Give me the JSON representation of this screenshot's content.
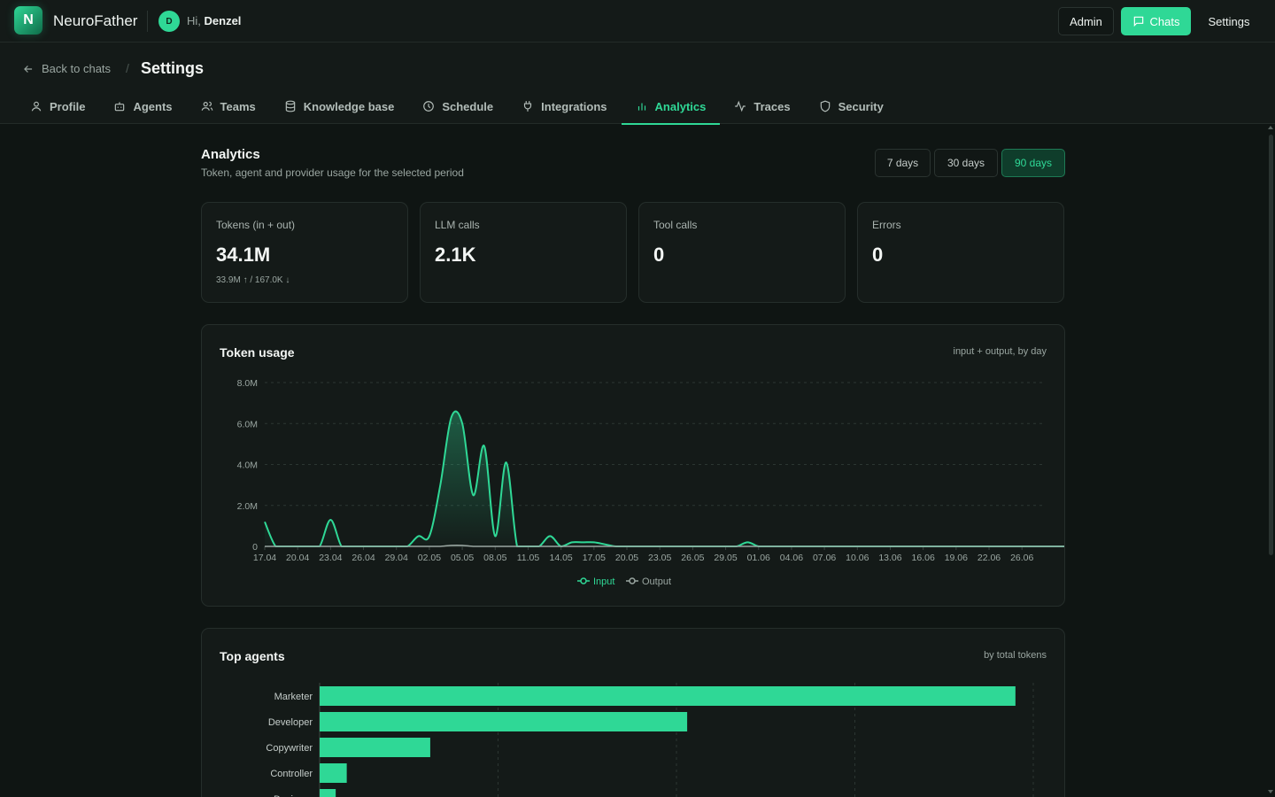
{
  "app": {
    "logo_letter": "N",
    "name": "NeuroFather",
    "user_initial": "D",
    "greeting": "Hi,",
    "user_name": "Denzel"
  },
  "topnav": {
    "admin": "Admin",
    "chats": "Chats",
    "settings": "Settings"
  },
  "header": {
    "back": "Back to chats",
    "separator": "/",
    "title": "Settings"
  },
  "tabs": [
    {
      "label": "Profile",
      "icon": "user-icon"
    },
    {
      "label": "Agents",
      "icon": "bot-icon"
    },
    {
      "label": "Teams",
      "icon": "users-icon"
    },
    {
      "label": "Knowledge base",
      "icon": "database-icon"
    },
    {
      "label": "Schedule",
      "icon": "clock-icon"
    },
    {
      "label": "Integrations",
      "icon": "plug-icon"
    },
    {
      "label": "Analytics",
      "icon": "bar-chart-icon",
      "active": true
    },
    {
      "label": "Traces",
      "icon": "activity-icon"
    },
    {
      "label": "Security",
      "icon": "shield-icon"
    }
  ],
  "analytics": {
    "title": "Analytics",
    "subtitle": "Token, agent and provider usage for the selected period",
    "periods": [
      "7 days",
      "30 days",
      "90 days"
    ],
    "selected_period": "90 days"
  },
  "stats": [
    {
      "label": "Tokens (in + out)",
      "value": "34.1M",
      "sub": "33.9M ↑ / 167.0K ↓"
    },
    {
      "label": "LLM calls",
      "value": "2.1K"
    },
    {
      "label": "Tool calls",
      "value": "0"
    },
    {
      "label": "Errors",
      "value": "0"
    }
  ],
  "token_card": {
    "title": "Token usage",
    "note": "input + output, by day"
  },
  "agents_card": {
    "title": "Top agents",
    "note": "by total tokens"
  },
  "colors": {
    "accent": "#2fd896",
    "muted": "#9aa6a1",
    "grid": "#2c3632"
  },
  "chart_data": [
    {
      "type": "area",
      "x_tick_labels": [
        "17.04",
        "20.04",
        "23.04",
        "26.04",
        "29.04",
        "02.05",
        "05.05",
        "08.05",
        "11.05",
        "14.05",
        "17.05",
        "20.05",
        "23.05",
        "26.05",
        "29.05",
        "01.06",
        "04.06",
        "07.06",
        "10.06",
        "13.06",
        "16.06",
        "19.06",
        "22.06",
        "26.06"
      ],
      "y_tick_labels": [
        "0",
        "2.0M",
        "4.0M",
        "6.0M",
        "8.0M"
      ],
      "ylim": [
        0,
        8000000
      ],
      "x_start": "17.04",
      "points_per_tick": 3,
      "series": [
        {
          "name": "Input",
          "color": "#2fd896",
          "values": [
            1200000,
            0,
            0,
            0,
            0,
            0,
            1300000,
            0,
            0,
            0,
            0,
            0,
            0,
            0,
            500000,
            500000,
            3000000,
            6300000,
            6000000,
            2500000,
            4900000,
            500000,
            4100000,
            0,
            0,
            0,
            500000,
            0,
            200000,
            200000,
            200000,
            100000,
            0,
            0,
            0,
            0,
            0,
            0,
            0,
            0,
            0,
            0,
            0,
            0,
            200000,
            0,
            0,
            0,
            0,
            0,
            0,
            0,
            0,
            0,
            0,
            0,
            0,
            0,
            0,
            0,
            0,
            0,
            0,
            0,
            0,
            0,
            0,
            0,
            0,
            0,
            0,
            0,
            0,
            0,
            0,
            0,
            0,
            0,
            0,
            0,
            0,
            0,
            0,
            0,
            0,
            0,
            0,
            0,
            0,
            0,
            0,
            0,
            0,
            0,
            0,
            0,
            0,
            0,
            0,
            0,
            0,
            0,
            0,
            0,
            0,
            0,
            0,
            0,
            0,
            0
          ]
        },
        {
          "name": "Output",
          "color": "#9aa6a1",
          "values": [
            0,
            0,
            0,
            0,
            0,
            0,
            0,
            0,
            0,
            0,
            0,
            0,
            0,
            0,
            0,
            0,
            0,
            50000,
            50000,
            0,
            0,
            0,
            0,
            0,
            0,
            0,
            0,
            0,
            0,
            0,
            0,
            0,
            0,
            0,
            0,
            0,
            0,
            0,
            0,
            0,
            0,
            0,
            0,
            0,
            0,
            0,
            0,
            0,
            0,
            0,
            0,
            0,
            0,
            0,
            0,
            0,
            0,
            0,
            0,
            0,
            0,
            0,
            0,
            0,
            0,
            0,
            0,
            0,
            0,
            0,
            0,
            0,
            0,
            0,
            0,
            0,
            0,
            0,
            0,
            0,
            0,
            0,
            0,
            0,
            0,
            0,
            0,
            0,
            0,
            0,
            0,
            0,
            0,
            0,
            0,
            0,
            0,
            0,
            0,
            0,
            0,
            0,
            0,
            0,
            0,
            0,
            0,
            0,
            0,
            0
          ]
        }
      ]
    },
    {
      "type": "bar",
      "orientation": "horizontal",
      "categories": [
        "Marketer",
        "Developer",
        "Copywriter",
        "Controller",
        "Designer"
      ],
      "values": [
        19500000,
        10300000,
        3100000,
        760000,
        450000
      ],
      "xlim": [
        0,
        20000000
      ],
      "color": "#2fd896"
    }
  ]
}
